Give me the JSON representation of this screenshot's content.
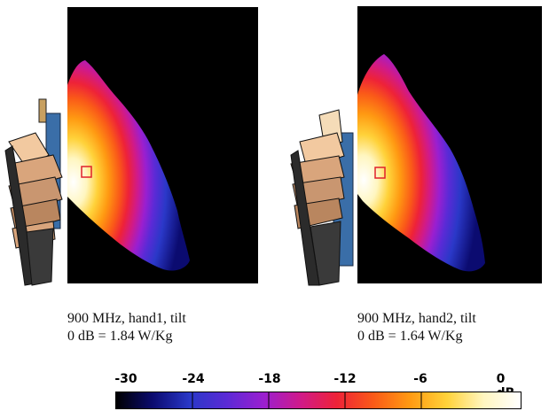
{
  "panels": [
    {
      "caption_line1": "900 MHz, hand1, tilt",
      "caption_line2": "0 dB = 1.84 W/Kg"
    },
    {
      "caption_line1": "900 MHz, hand2, tilt",
      "caption_line2": "0 dB = 1.64 W/Kg"
    }
  ],
  "colorbar": {
    "tick_labels": [
      "-30",
      "-24",
      "-18",
      "-12",
      "-6",
      "0 dB"
    ],
    "stops": [
      "#000000",
      "#0b0b70",
      "#2a38c8",
      "#5b2ad6",
      "#9a1fd0",
      "#d01a8a",
      "#ee2238",
      "#fa5a18",
      "#ff9a12",
      "#ffd23a",
      "#fff6c0",
      "#ffffff"
    ]
  }
}
